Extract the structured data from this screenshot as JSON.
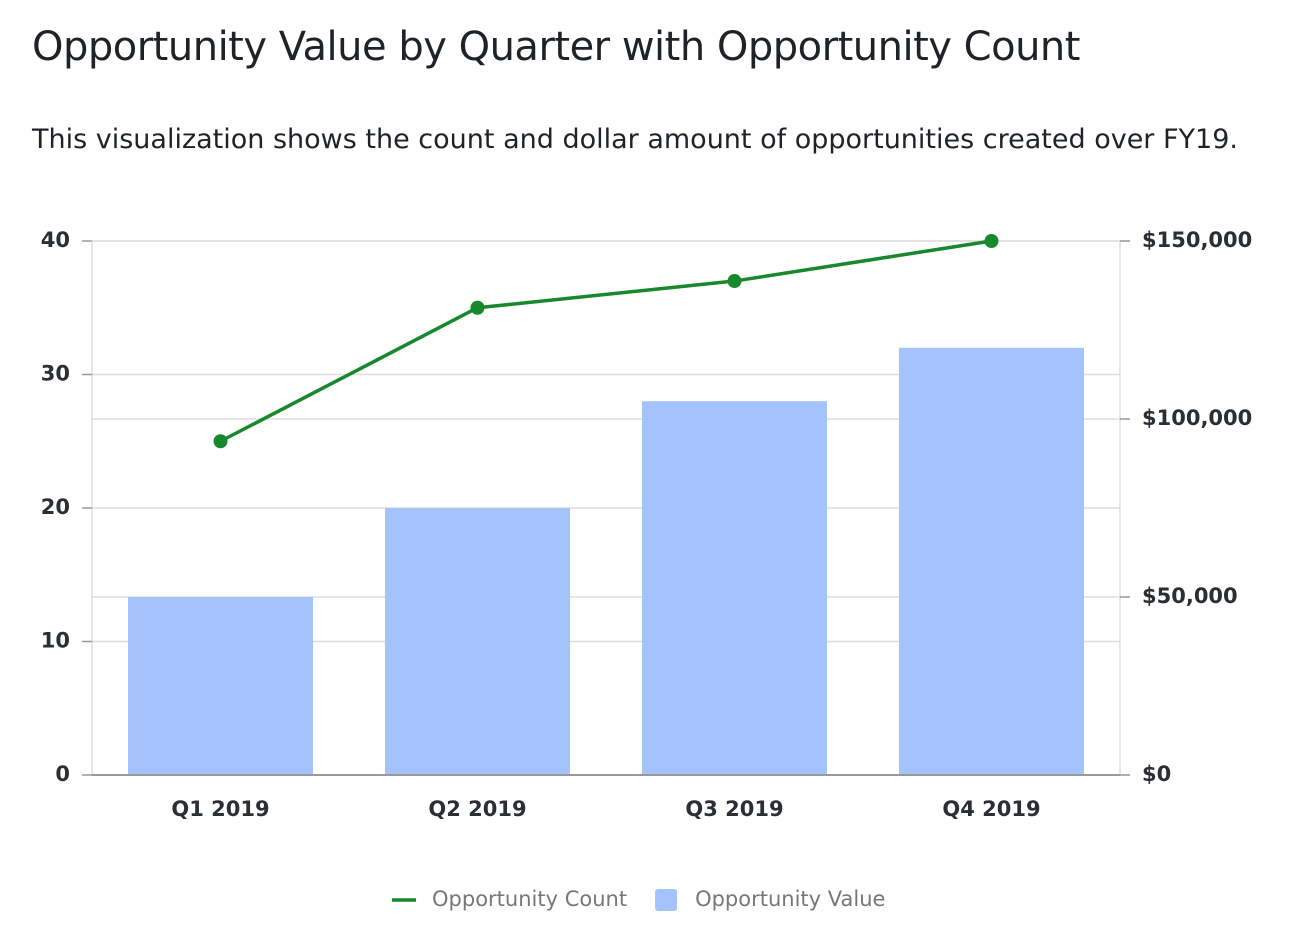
{
  "chart_data": {
    "type": "bar-line",
    "title": "Opportunity Value by Quarter with Opportunity Count",
    "subtitle": "This visualization shows the count and dollar amount of opportunities created over FY19.",
    "categories": [
      "Q1 2019",
      "Q2 2019",
      "Q3 2019",
      "Q4 2019"
    ],
    "series": [
      {
        "name": "Opportunity Count",
        "type": "line",
        "color": "#17882c",
        "values": [
          25,
          35,
          37,
          40
        ],
        "axis": "y"
      },
      {
        "name": "Opportunity Value",
        "type": "bar",
        "color": "#a4c2fb",
        "values": [
          50000,
          75000,
          105000,
          120000
        ],
        "axis": "y2"
      }
    ],
    "ylim": [
      0,
      40
    ],
    "yticks": [
      0,
      10,
      20,
      30,
      40
    ],
    "y2lim": [
      0,
      150000
    ],
    "y2ticks": [
      {
        "value": 0,
        "label": "$0"
      },
      {
        "value": 50000,
        "label": "$50,000"
      },
      {
        "value": 100000,
        "label": "$100,000"
      },
      {
        "value": 150000,
        "label": "$150,000"
      }
    ],
    "grid": true,
    "legend": "bottom"
  }
}
